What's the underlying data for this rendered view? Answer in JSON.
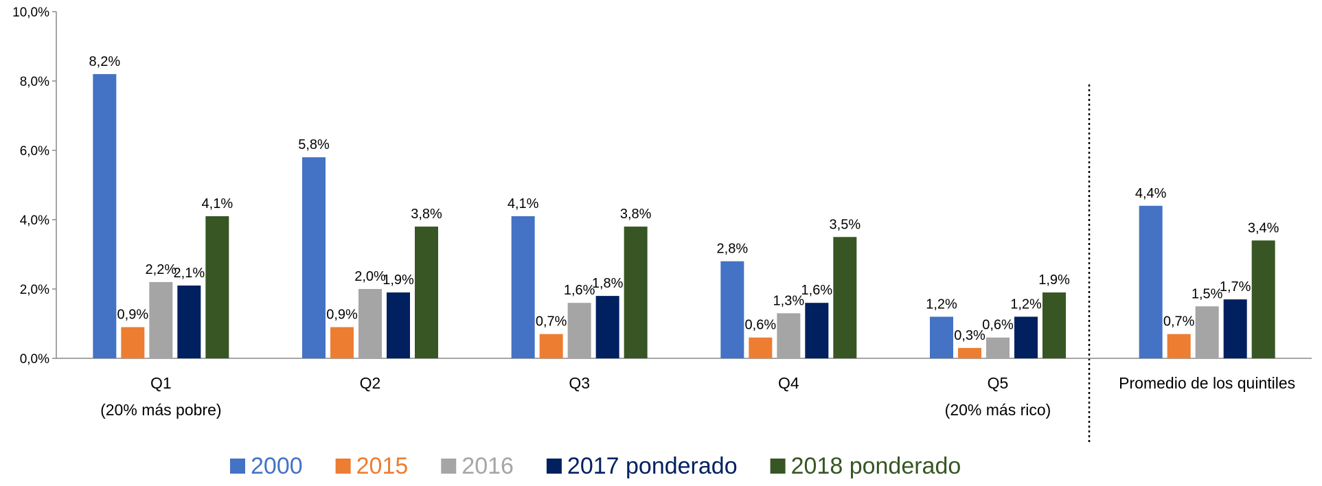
{
  "chart_data": {
    "type": "bar",
    "categories": [
      [
        "Q1",
        "(20% más pobre)"
      ],
      [
        "Q2"
      ],
      [
        "Q3"
      ],
      [
        "Q4"
      ],
      [
        "Q5",
        "(20% más rico)"
      ],
      [
        "Promedio de los quintiles"
      ]
    ],
    "series": [
      {
        "name": "2000",
        "color": "#4472c4",
        "values": [
          8.2,
          5.8,
          4.1,
          2.8,
          1.2,
          4.4
        ],
        "value_labels": [
          "8,2%",
          "5,8%",
          "4,1%",
          "2,8%",
          "1,2%",
          "4,4%"
        ]
      },
      {
        "name": "2015",
        "color": "#ed7d31",
        "values": [
          0.9,
          0.9,
          0.7,
          0.6,
          0.3,
          0.7
        ],
        "value_labels": [
          "0,9%",
          "0,9%",
          "0,7%",
          "0,6%",
          "0,3%",
          "0,7%"
        ]
      },
      {
        "name": "2016",
        "color": "#a5a5a5",
        "values": [
          2.2,
          2.0,
          1.6,
          1.3,
          0.6,
          1.5
        ],
        "value_labels": [
          "2,2%",
          "2,0%",
          "1,6%",
          "1,3%",
          "0,6%",
          "1,5%"
        ]
      },
      {
        "name": "2017 ponderado",
        "color": "#002060",
        "values": [
          2.1,
          1.9,
          1.8,
          1.6,
          1.2,
          1.7
        ],
        "value_labels": [
          "2,1%",
          "1,9%",
          "1,8%",
          "1,6%",
          "1,2%",
          "1,7%"
        ]
      },
      {
        "name": "2018 ponderado",
        "color": "#375623",
        "values": [
          4.1,
          3.8,
          3.8,
          3.5,
          1.9,
          3.4
        ],
        "value_labels": [
          "4,1%",
          "3,8%",
          "3,8%",
          "3,5%",
          "1,9%",
          "3,4%"
        ]
      }
    ],
    "ylim": [
      0,
      10
    ],
    "yticks": [
      {
        "value": 0,
        "label": "0,0%"
      },
      {
        "value": 2,
        "label": "2,0%"
      },
      {
        "value": 4,
        "label": "4,0%"
      },
      {
        "value": 6,
        "label": "6,0%"
      },
      {
        "value": 8,
        "label": "8,0%"
      },
      {
        "value": 10,
        "label": "10,0%"
      }
    ],
    "grid": false,
    "legend": "bottom"
  }
}
